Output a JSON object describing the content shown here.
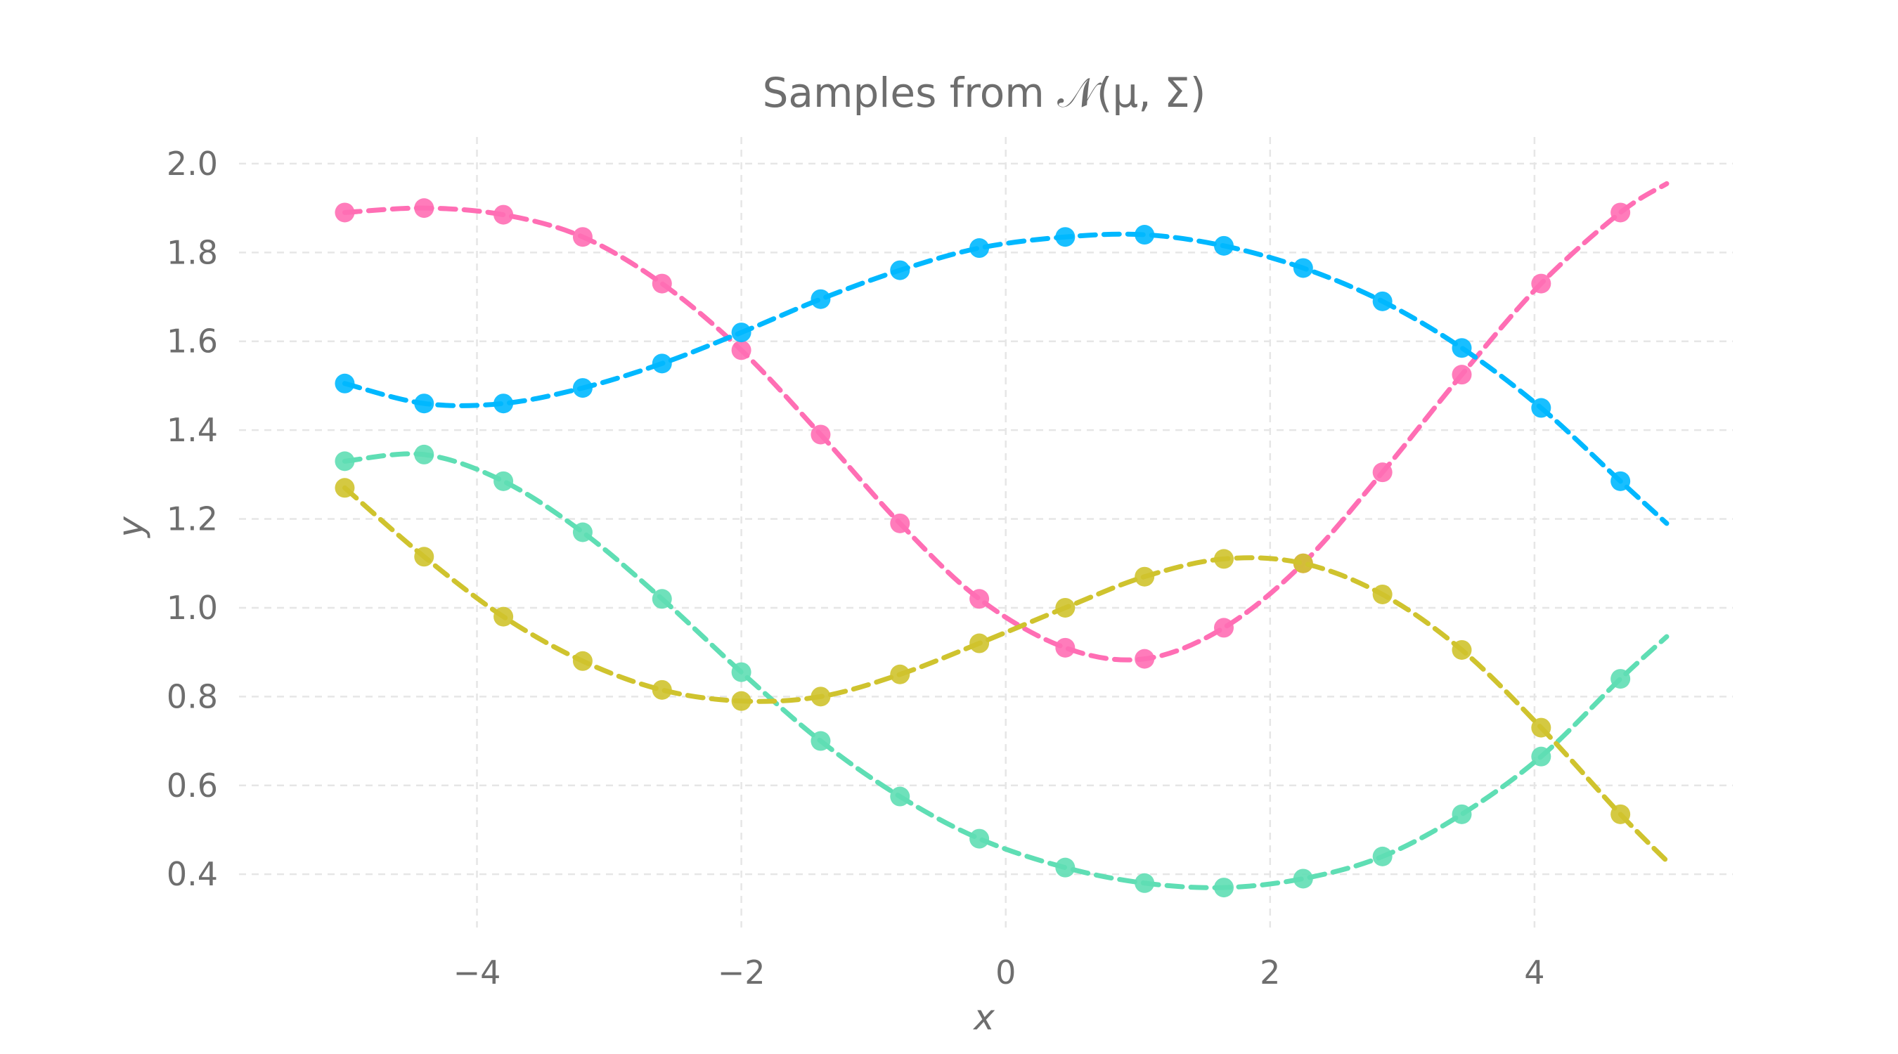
{
  "chart_data": {
    "type": "line",
    "title": "Samples from 𝒩(μ, Σ)",
    "xlabel": "x",
    "ylabel": "y",
    "xlim": [
      -5.8,
      5.5
    ],
    "ylim": [
      0.28,
      2.06
    ],
    "grid": true,
    "x_ticks": [
      -4,
      -2,
      0,
      2,
      4
    ],
    "x_tick_labels": [
      "−4",
      "−2",
      "0",
      "2",
      "4"
    ],
    "y_ticks": [
      0.4,
      0.6,
      0.8,
      1.0,
      1.2,
      1.4,
      1.6,
      1.8,
      2.0
    ],
    "y_tick_labels": [
      "0.4",
      "0.6",
      "0.8",
      "1.0",
      "1.2",
      "1.4",
      "1.6",
      "1.8",
      "2.0"
    ],
    "points_x": [
      -5.0,
      -4.4,
      -3.8,
      -3.2,
      -2.6,
      -2.0,
      -1.4,
      -0.8,
      -0.2,
      0.45,
      1.05,
      1.65,
      2.25,
      2.85,
      3.45,
      4.05,
      4.65
    ],
    "line_x": [
      -5.0,
      -4.4,
      -3.8,
      -3.2,
      -2.6,
      -2.0,
      -1.4,
      -0.8,
      -0.2,
      0.45,
      1.05,
      1.65,
      2.25,
      2.85,
      3.45,
      4.05,
      4.65,
      5.0
    ],
    "series": [
      {
        "color": "#ff6eb4",
        "point_values": [
          1.89,
          1.9,
          1.885,
          1.835,
          1.73,
          1.58,
          1.39,
          1.19,
          1.02,
          0.91,
          0.885,
          0.955,
          1.1,
          1.305,
          1.525,
          1.73,
          1.89
        ],
        "line_values": [
          1.89,
          1.9,
          1.885,
          1.835,
          1.73,
          1.58,
          1.39,
          1.19,
          1.02,
          0.91,
          0.885,
          0.955,
          1.1,
          1.305,
          1.525,
          1.73,
          1.89,
          1.955
        ]
      },
      {
        "color": "#00b8ff",
        "point_values": [
          1.505,
          1.46,
          1.46,
          1.495,
          1.55,
          1.62,
          1.695,
          1.76,
          1.81,
          1.835,
          1.84,
          1.815,
          1.765,
          1.69,
          1.585,
          1.45,
          1.285
        ],
        "line_values": [
          1.505,
          1.46,
          1.46,
          1.495,
          1.55,
          1.62,
          1.695,
          1.76,
          1.81,
          1.835,
          1.84,
          1.815,
          1.765,
          1.69,
          1.585,
          1.45,
          1.285,
          1.19
        ]
      },
      {
        "color": "#5fdeb4",
        "point_values": [
          1.33,
          1.345,
          1.285,
          1.17,
          1.02,
          0.855,
          0.7,
          0.575,
          0.48,
          0.415,
          0.38,
          0.37,
          0.39,
          0.44,
          0.535,
          0.665,
          0.84
        ],
        "line_values": [
          1.33,
          1.345,
          1.285,
          1.17,
          1.02,
          0.855,
          0.7,
          0.575,
          0.48,
          0.415,
          0.38,
          0.37,
          0.39,
          0.44,
          0.535,
          0.665,
          0.84,
          0.935
        ]
      },
      {
        "color": "#cfc32e",
        "point_values": [
          1.27,
          1.115,
          0.98,
          0.88,
          0.815,
          0.79,
          0.8,
          0.85,
          0.92,
          1.0,
          1.07,
          1.11,
          1.1,
          1.03,
          0.905,
          0.73,
          0.535
        ],
        "line_values": [
          1.27,
          1.115,
          0.98,
          0.88,
          0.815,
          0.79,
          0.8,
          0.85,
          0.92,
          1.0,
          1.07,
          1.11,
          1.1,
          1.03,
          0.905,
          0.73,
          0.535,
          0.43
        ]
      }
    ]
  }
}
